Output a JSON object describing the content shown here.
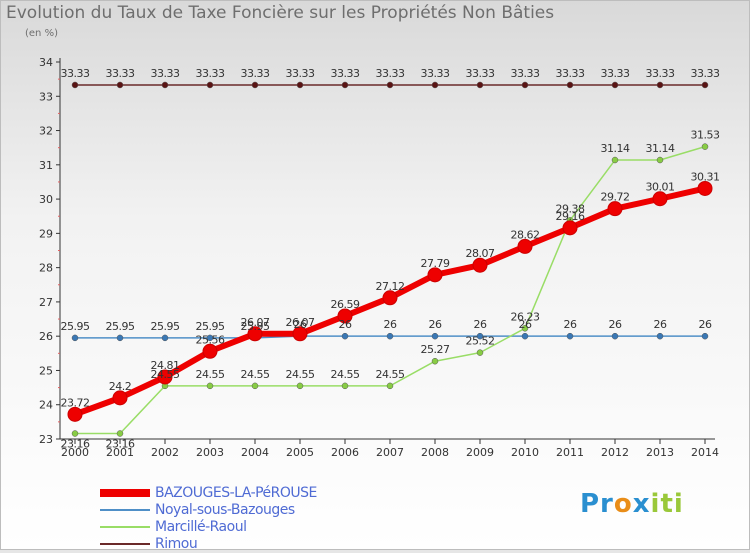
{
  "title": "Evolution du Taux de Taxe Foncière sur les Propriétés Non Bâties",
  "subtitle": "(en %)",
  "logo": {
    "part1": "Pr",
    "part2": "o",
    "part3": "x",
    "part4": "iti"
  },
  "chart_data": {
    "type": "line",
    "title": "Evolution du Taux de Taxe Foncière sur les Propriétés Non Bâties",
    "ylabel": "(en %)",
    "xlabel": "",
    "x": [
      "2000",
      "2001",
      "2002",
      "2003",
      "2004",
      "2005",
      "2006",
      "2007",
      "2008",
      "2009",
      "2010",
      "2011",
      "2012",
      "2013",
      "2014"
    ],
    "ylim": [
      23,
      34
    ],
    "yticks": [
      "23",
      "24",
      "25",
      "26",
      "27",
      "28",
      "29",
      "30",
      "31",
      "32",
      "33",
      "34"
    ],
    "grid": false,
    "legend_position": "bottom-left",
    "series": [
      {
        "name": "BAZOUGES-LA-PéROUSE",
        "color": "#ee0000",
        "values": [
          23.72,
          24.2,
          24.81,
          25.56,
          26.07,
          26.07,
          26.59,
          27.12,
          27.79,
          28.07,
          28.62,
          29.16,
          29.72,
          30.01,
          30.31
        ],
        "labels": [
          "23.72",
          "24.2",
          "24.81",
          "25.56",
          "26.07",
          "26.07",
          "26.59",
          "27.12",
          "27.79",
          "28.07",
          "28.62",
          "29.16",
          "29.72",
          "30.01",
          "30.31"
        ]
      },
      {
        "name": "Noyal-sous-Bazouges",
        "color": "#4f8fc7",
        "values": [
          25.95,
          25.95,
          25.95,
          25.95,
          25.95,
          26,
          26,
          26,
          26,
          26,
          26,
          26,
          26,
          26,
          26
        ],
        "labels": [
          "25.95",
          "25.95",
          "25.95",
          "25.95",
          "25.95",
          "26",
          "26",
          "26",
          "26",
          "26",
          "26",
          "26",
          "26",
          "26",
          "26"
        ]
      },
      {
        "name": "Marcillé-Raoul",
        "color": "#99dd66",
        "values": [
          23.16,
          23.16,
          24.55,
          24.55,
          24.55,
          24.55,
          24.55,
          24.55,
          25.27,
          25.52,
          26.23,
          29.38,
          31.14,
          31.14,
          31.53
        ],
        "labels": [
          "23.16",
          "23.16",
          "24.55",
          "24.55",
          "24.55",
          "24.55",
          "24.55",
          "24.55",
          "25.27",
          "25.52",
          "26.23",
          "29.38",
          "31.14",
          "31.14",
          "31.53"
        ]
      },
      {
        "name": "Rimou",
        "color": "#6b2a2a",
        "values": [
          33.33,
          33.33,
          33.33,
          33.33,
          33.33,
          33.33,
          33.33,
          33.33,
          33.33,
          33.33,
          33.33,
          33.33,
          33.33,
          33.33,
          33.33
        ],
        "labels": [
          "33.33",
          "33.33",
          "33.33",
          "33.33",
          "33.33",
          "33.33",
          "33.33",
          "33.33",
          "33.33",
          "33.33",
          "33.33",
          "33.33",
          "33.33",
          "33.33",
          "33.33"
        ]
      }
    ]
  }
}
